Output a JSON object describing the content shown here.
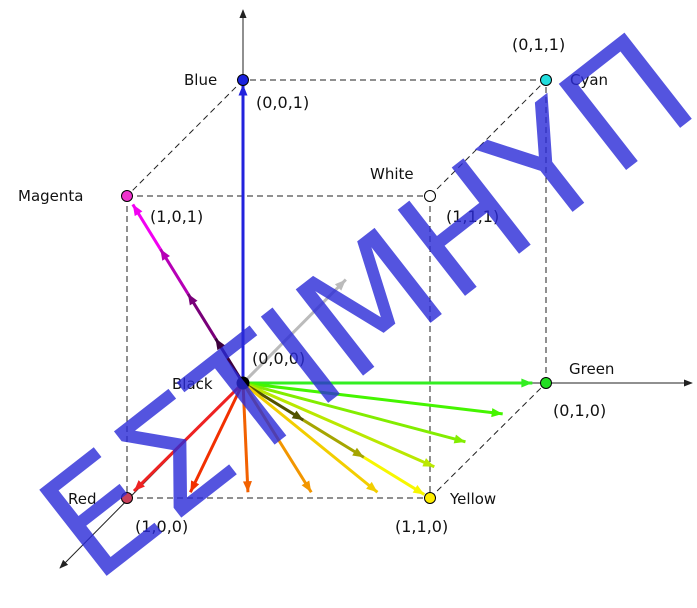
{
  "vertices": [
    {
      "key": "black",
      "name": "Black",
      "coord": "(0,0,0)",
      "color": "#000000"
    },
    {
      "key": "red",
      "name": "Red",
      "coord": "(1,0,0)",
      "color": "#c8405a"
    },
    {
      "key": "green",
      "name": "Green",
      "coord": "(0,1,0)",
      "color": "#22dd22"
    },
    {
      "key": "blue",
      "name": "Blue",
      "coord": "(0,0,1)",
      "color": "#1a22dd"
    },
    {
      "key": "yellow",
      "name": "Yellow",
      "coord": "(1,1,0)",
      "color": "#ffee00"
    },
    {
      "key": "magenta",
      "name": "Magenta",
      "coord": "(1,0,1)",
      "color": "#ee33cc"
    },
    {
      "key": "cyan",
      "name": "Cyan",
      "coord": "(0,1,1)",
      "color": "#22dddd"
    },
    {
      "key": "white",
      "name": "White",
      "coord": "(1,1,1)",
      "color": "#ffffff"
    }
  ],
  "watermark": "ΕΣΤΙΜΗΥΠ",
  "colors": {
    "edge": "#222222",
    "gray_vector": "#bbbbbb",
    "blue_vector": "#2222dd"
  }
}
